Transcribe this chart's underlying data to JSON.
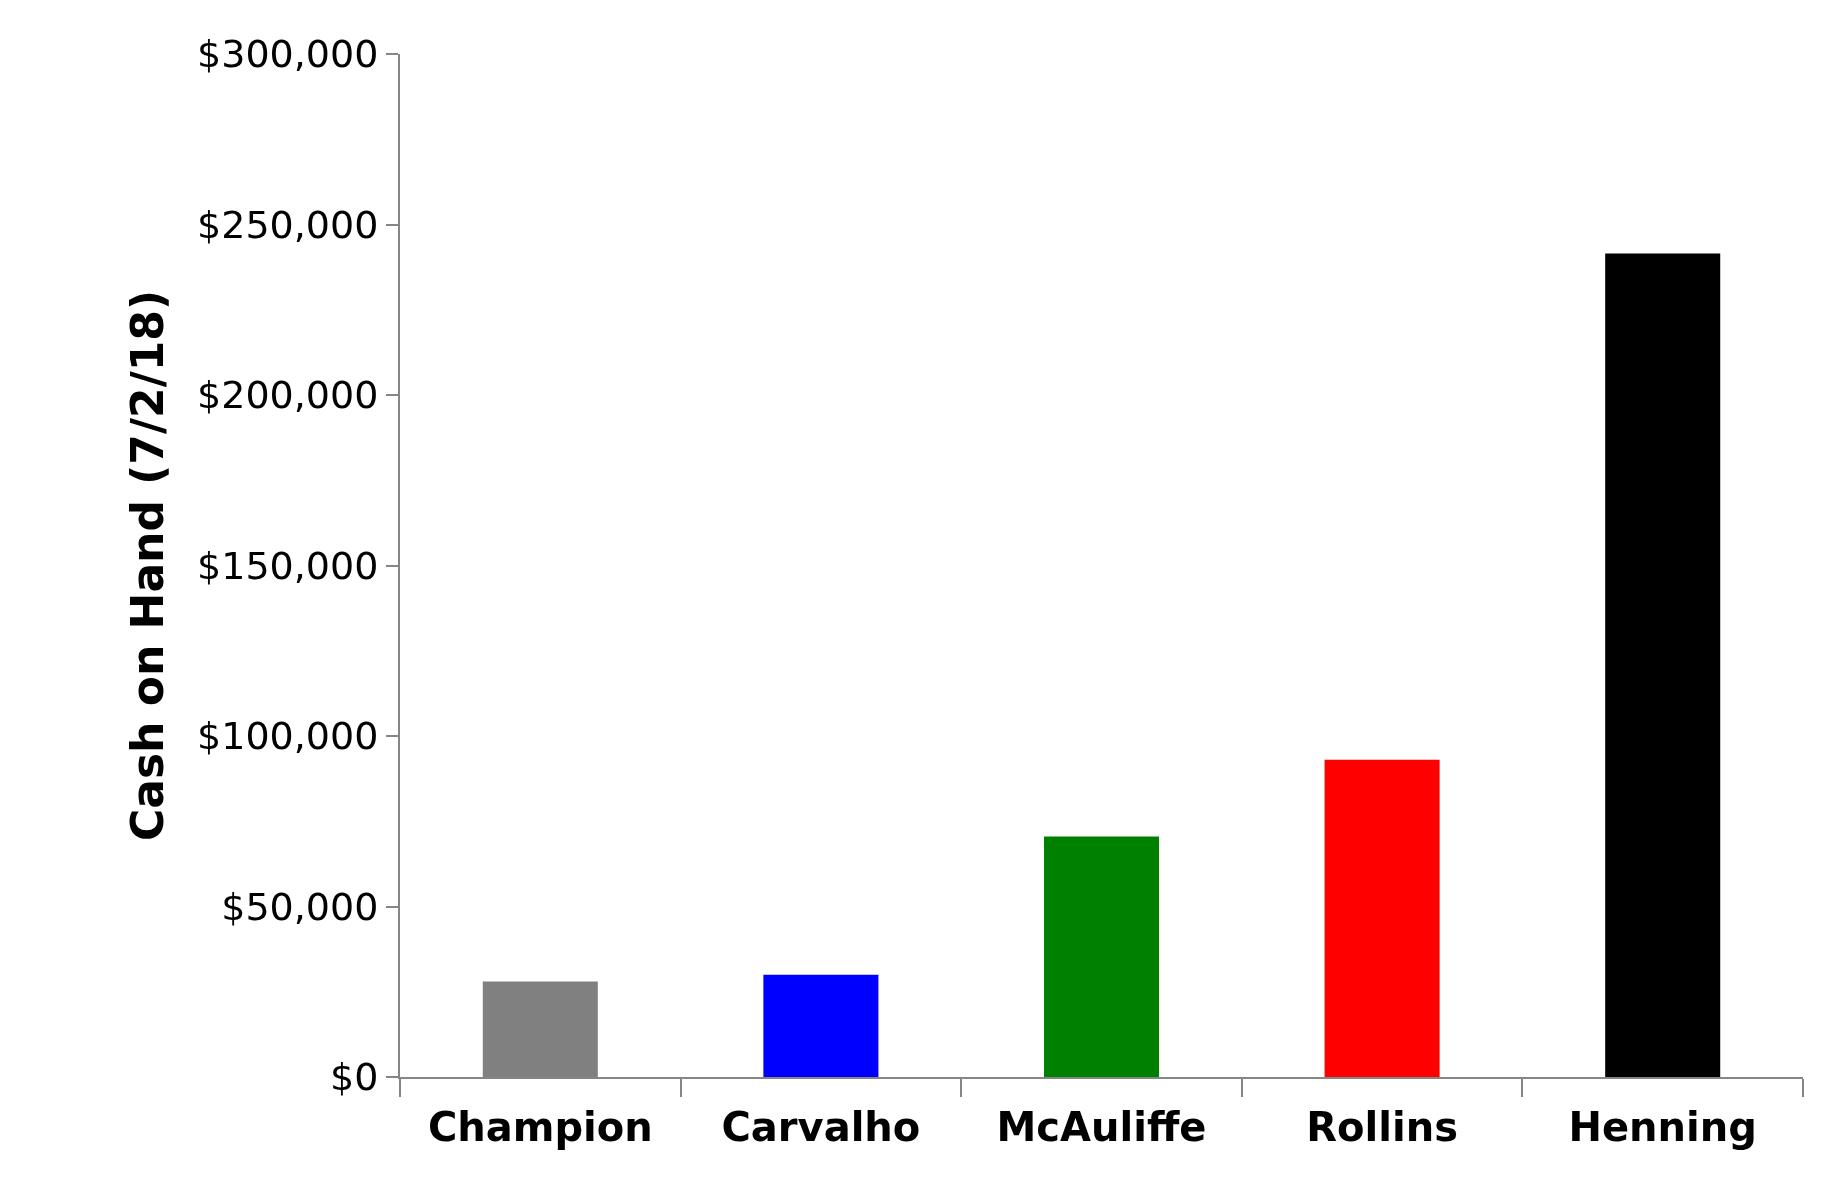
{
  "chart_data": {
    "type": "bar",
    "ylabel": "Cash on Hand (7/2/18)",
    "categories": [
      "Champion",
      "Carvalho",
      "McAuliffe",
      "Rollins",
      "Henning"
    ],
    "values": [
      28000,
      30000,
      70500,
      93000,
      241500
    ],
    "colors": [
      "#808080",
      "#0000ff",
      "#008000",
      "#ff0000",
      "#000000"
    ],
    "ylim": [
      0,
      300000
    ],
    "yticks": [
      {
        "value": 0,
        "label": "$0"
      },
      {
        "value": 50000,
        "label": "$50,000"
      },
      {
        "value": 100000,
        "label": "$100,000"
      },
      {
        "value": 150000,
        "label": "$150,000"
      },
      {
        "value": 200000,
        "label": "$200,000"
      },
      {
        "value": 250000,
        "label": "$250,000"
      },
      {
        "value": 300000,
        "label": "$300,000"
      }
    ],
    "legend": false
  }
}
